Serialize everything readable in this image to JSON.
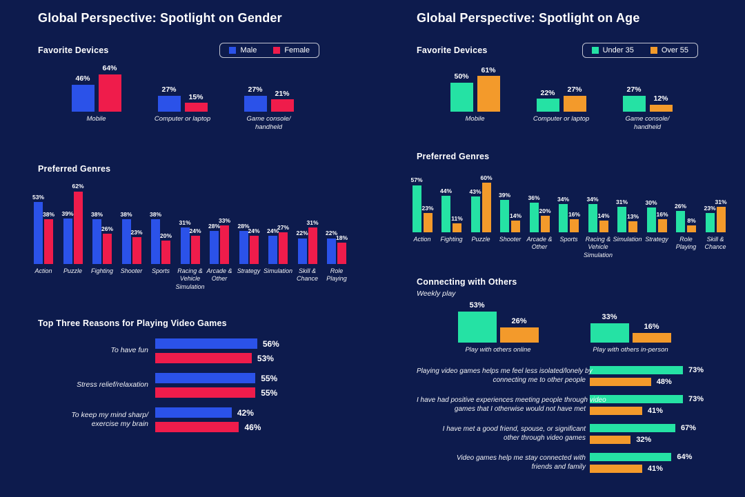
{
  "page": {
    "background": "#0d1b4d",
    "text_color": "#ffffff"
  },
  "gender": {
    "title": "Global Perspective: Spotlight on Gender",
    "devices_title": "Favorite Devices",
    "genres_title": "Preferred Genres",
    "reasons_title": "Top Three Reasons for Playing Video Games",
    "legend": [
      {
        "label": "Male",
        "color": "#2b52e9"
      },
      {
        "label": "Female",
        "color": "#ef1c4b"
      }
    ]
  },
  "age": {
    "title": "Global Perspective: Spotlight on Age",
    "devices_title": "Favorite Devices",
    "genres_title": "Preferred Genres",
    "connecting_title": "Connecting with Others",
    "connecting_subtitle": "Weekly play",
    "legend": [
      {
        "label": "Under 35",
        "color": "#25e2a4"
      },
      {
        "label": "Over 55",
        "color": "#f39a2b"
      }
    ]
  },
  "chart_data": [
    {
      "id": "gender-devices",
      "type": "bar",
      "title": "Favorite Devices",
      "legend_position": "top-right",
      "grid": false,
      "value_suffix": "%",
      "ylim": [
        0,
        70
      ],
      "categories": [
        "Mobile",
        "Computer or laptop",
        "Game console/\nhandheld"
      ],
      "series": [
        {
          "name": "Male",
          "color": "#2b52e9",
          "values": [
            46,
            27,
            27
          ]
        },
        {
          "name": "Female",
          "color": "#ef1c4b",
          "values": [
            64,
            15,
            21
          ]
        }
      ]
    },
    {
      "id": "gender-genres",
      "type": "bar",
      "title": "Preferred Genres",
      "grid": false,
      "value_suffix": "%",
      "ylim": [
        0,
        70
      ],
      "categories": [
        "Action",
        "Puzzle",
        "Fighting",
        "Shooter",
        "Sports",
        "Racing &\nVehicle\nSimulation",
        "Arcade &\nOther",
        "Strategy",
        "Simulation",
        "Skill &\nChance",
        "Role\nPlaying"
      ],
      "series": [
        {
          "name": "Male",
          "color": "#2b52e9",
          "values": [
            53,
            39,
            38,
            38,
            38,
            31,
            28,
            28,
            24,
            22,
            22
          ]
        },
        {
          "name": "Female",
          "color": "#ef1c4b",
          "values": [
            38,
            62,
            26,
            23,
            20,
            24,
            33,
            24,
            27,
            31,
            18
          ]
        }
      ]
    },
    {
      "id": "gender-reasons",
      "type": "bar",
      "orientation": "horizontal",
      "title": "Top Three Reasons for Playing Video Games",
      "grid": false,
      "value_suffix": "%",
      "xlim": [
        0,
        60
      ],
      "categories": [
        "To have fun",
        "Stress relief/relaxation",
        "To keep my mind sharp/\nexercise my brain"
      ],
      "series": [
        {
          "name": "Male",
          "color": "#2b52e9",
          "values": [
            56,
            55,
            42
          ]
        },
        {
          "name": "Female",
          "color": "#ef1c4b",
          "values": [
            53,
            55,
            46
          ]
        }
      ]
    },
    {
      "id": "age-devices",
      "type": "bar",
      "title": "Favorite Devices",
      "legend_position": "top-right",
      "grid": false,
      "value_suffix": "%",
      "ylim": [
        0,
        70
      ],
      "categories": [
        "Mobile",
        "Computer or laptop",
        "Game console/\nhandheld"
      ],
      "series": [
        {
          "name": "Under 35",
          "color": "#25e2a4",
          "values": [
            50,
            22,
            27
          ]
        },
        {
          "name": "Over 55",
          "color": "#f39a2b",
          "values": [
            61,
            27,
            12
          ]
        }
      ]
    },
    {
      "id": "age-genres",
      "type": "bar",
      "title": "Preferred Genres",
      "grid": false,
      "value_suffix": "%",
      "ylim": [
        0,
        70
      ],
      "categories": [
        "Action",
        "Fighting",
        "Puzzle",
        "Shooter",
        "Arcade &\nOther",
        "Sports",
        "Racing &\nVehicle\nSimulation",
        "Simulation",
        "Strategy",
        "Role\nPlaying",
        "Skill &\nChance"
      ],
      "series": [
        {
          "name": "Under 35",
          "color": "#25e2a4",
          "values": [
            57,
            44,
            43,
            39,
            36,
            34,
            34,
            31,
            30,
            26,
            23
          ]
        },
        {
          "name": "Over 55",
          "color": "#f39a2b",
          "values": [
            23,
            11,
            60,
            14,
            20,
            16,
            14,
            13,
            16,
            8,
            31
          ]
        }
      ]
    },
    {
      "id": "age-connecting",
      "type": "bar",
      "title": "Connecting with Others",
      "subtitle": "Weekly play",
      "grid": false,
      "value_suffix": "%",
      "ylim": [
        0,
        60
      ],
      "categories": [
        "Play with others online",
        "Play with others in-person"
      ],
      "series": [
        {
          "name": "Under 35",
          "color": "#25e2a4",
          "values": [
            53,
            33
          ]
        },
        {
          "name": "Over 55",
          "color": "#f39a2b",
          "values": [
            26,
            16
          ]
        }
      ]
    },
    {
      "id": "age-statements",
      "type": "bar",
      "orientation": "horizontal",
      "grid": false,
      "value_suffix": "%",
      "xlim": [
        0,
        80
      ],
      "categories": [
        "Playing video games helps me feel less isolated/lonely by\nconnecting me to other people",
        "I have had positive experiences meeting people through video\ngames that I otherwise would not have met",
        "I have met a good friend, spouse, or significant\nother through video games",
        "Video games help me stay connected with\nfriends and family"
      ],
      "series": [
        {
          "name": "Under 35",
          "color": "#25e2a4",
          "values": [
            73,
            73,
            67,
            64
          ]
        },
        {
          "name": "Over 55",
          "color": "#f39a2b",
          "values": [
            48,
            41,
            32,
            41
          ]
        }
      ]
    }
  ]
}
